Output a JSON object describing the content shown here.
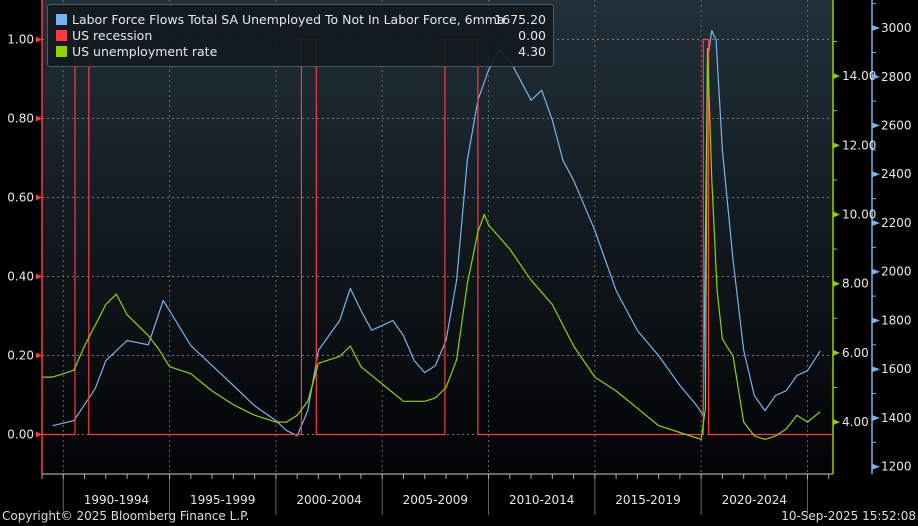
{
  "chart_data": {
    "type": "line",
    "title": "",
    "x_range": [
      1989.0,
      2026.2
    ],
    "x_band_labels": [
      "1990-1994",
      "1995-1999",
      "2000-2004",
      "2005-2009",
      "2010-2014",
      "2015-2019",
      "2020-2024"
    ],
    "axes": {
      "left": {
        "range": [
          -0.1,
          1.1
        ],
        "ticks": [
          "0.00",
          "0.20",
          "0.40",
          "0.60",
          "0.80",
          "1.00"
        ],
        "color": "#ff3b3b"
      },
      "right_green": {
        "range": [
          2.5,
          16.2
        ],
        "ticks": [
          "4.00",
          "6.00",
          "8.00",
          "10.00",
          "12.00",
          "14.00"
        ],
        "color": "#8fd400"
      },
      "right_blue": {
        "range": [
          1170,
          3115
        ],
        "ticks": [
          "1200",
          "1400",
          "1600",
          "1800",
          "2000",
          "2200",
          "2400",
          "2600",
          "2800",
          "3000"
        ],
        "color": "#78b4ee"
      }
    },
    "grid": true,
    "legend_position": "top-left",
    "series": [
      {
        "name": "Labor Force Flows Total SA Unemployed To Not In Labor Force, 6mma",
        "last_value": "1675.20",
        "axis": "right_blue",
        "color": "#78b4ee",
        "x": [
          1989.5,
          1990.5,
          1991.5,
          1992,
          1993,
          1994,
          1994.7,
          1995,
          1996,
          1997,
          1998,
          1999,
          2000,
          2000.5,
          2001,
          2001.5,
          2002,
          2003,
          2003.5,
          2004,
          2004.5,
          2005,
          2005.5,
          2006,
          2006.5,
          2007,
          2007.5,
          2008,
          2008.5,
          2009,
          2009.5,
          2010,
          2010.5,
          2011,
          2011.5,
          2012,
          2012.5,
          2013,
          2013.5,
          2014,
          2015,
          2016,
          2017,
          2018,
          2019,
          2019.8,
          2020.1,
          2020.3,
          2020.5,
          2020.7,
          2021,
          2021.5,
          2022,
          2022.5,
          2023,
          2023.5,
          2024,
          2024.5,
          2025,
          2025.6
        ],
        "y": [
          1368,
          1389,
          1520,
          1635,
          1718,
          1700,
          1882,
          1840,
          1697,
          1615,
          1533,
          1450,
          1389,
          1348,
          1327,
          1430,
          1677,
          1800,
          1931,
          1841,
          1760,
          1779,
          1800,
          1738,
          1636,
          1586,
          1615,
          1718,
          1964,
          2457,
          2704,
          2827,
          2910,
          2868,
          2786,
          2704,
          2745,
          2622,
          2457,
          2375,
          2170,
          1923,
          1759,
          1656,
          1533,
          1450,
          1410,
          2868,
          2990,
          2950,
          2498,
          2046,
          1677,
          1492,
          1430,
          1492,
          1512,
          1574,
          1594,
          1675
        ]
      },
      {
        "name": "US recession",
        "last_value": "0.00",
        "axis": "left",
        "color": "#ff3b3b",
        "x": [
          1989.0,
          1990.55,
          1990.55,
          1991.2,
          1991.2,
          2001.2,
          2001.2,
          2001.9,
          2001.9,
          2007.95,
          2007.95,
          2009.5,
          2009.5,
          2020.1,
          2020.1,
          2020.35,
          2020.35,
          2026.2
        ],
        "y": [
          0,
          0,
          1,
          1,
          0,
          0,
          1,
          1,
          0,
          0,
          1,
          1,
          0,
          0,
          1,
          1,
          0,
          0
        ]
      },
      {
        "name": "US unemployment rate",
        "last_value": "4.30",
        "axis": "right_green",
        "color": "#8fd400",
        "x": [
          1989.0,
          1989.5,
          1990,
          1990.5,
          1991,
          1991.5,
          1992,
          1992.5,
          1993,
          1993.5,
          1994,
          1994.5,
          1995,
          1996,
          1997,
          1998,
          1999,
          2000,
          2000.5,
          2001,
          2001.5,
          2002,
          2002.5,
          2003,
          2003.5,
          2004,
          2005,
          2006,
          2007,
          2007.5,
          2008,
          2008.5,
          2009,
          2009.5,
          2009.8,
          2010,
          2011,
          2012,
          2013,
          2014,
          2015,
          2016,
          2017,
          2018,
          2019,
          2020.0,
          2020.2,
          2020.3,
          2020.5,
          2020.75,
          2021,
          2021.5,
          2022,
          2022.5,
          2023,
          2023.5,
          2024,
          2024.5,
          2025,
          2025.6
        ],
        "y": [
          5.3,
          5.3,
          5.4,
          5.5,
          6.2,
          6.8,
          7.4,
          7.7,
          7.1,
          6.8,
          6.5,
          6.1,
          5.6,
          5.4,
          4.9,
          4.5,
          4.2,
          4.0,
          4.0,
          4.2,
          4.6,
          5.7,
          5.8,
          5.9,
          6.2,
          5.6,
          5.1,
          4.6,
          4.6,
          4.7,
          5.0,
          5.8,
          8.0,
          9.5,
          10.0,
          9.7,
          9.0,
          8.1,
          7.4,
          6.2,
          5.3,
          4.9,
          4.4,
          3.9,
          3.7,
          3.5,
          4.4,
          14.8,
          11.0,
          7.8,
          6.4,
          5.9,
          4.0,
          3.6,
          3.5,
          3.6,
          3.8,
          4.2,
          4.0,
          4.3
        ]
      }
    ]
  },
  "footer": {
    "copyright": "Copyright© 2025 Bloomberg Finance L.P.",
    "timestamp": "10-Sep-2025 15:52:08"
  }
}
